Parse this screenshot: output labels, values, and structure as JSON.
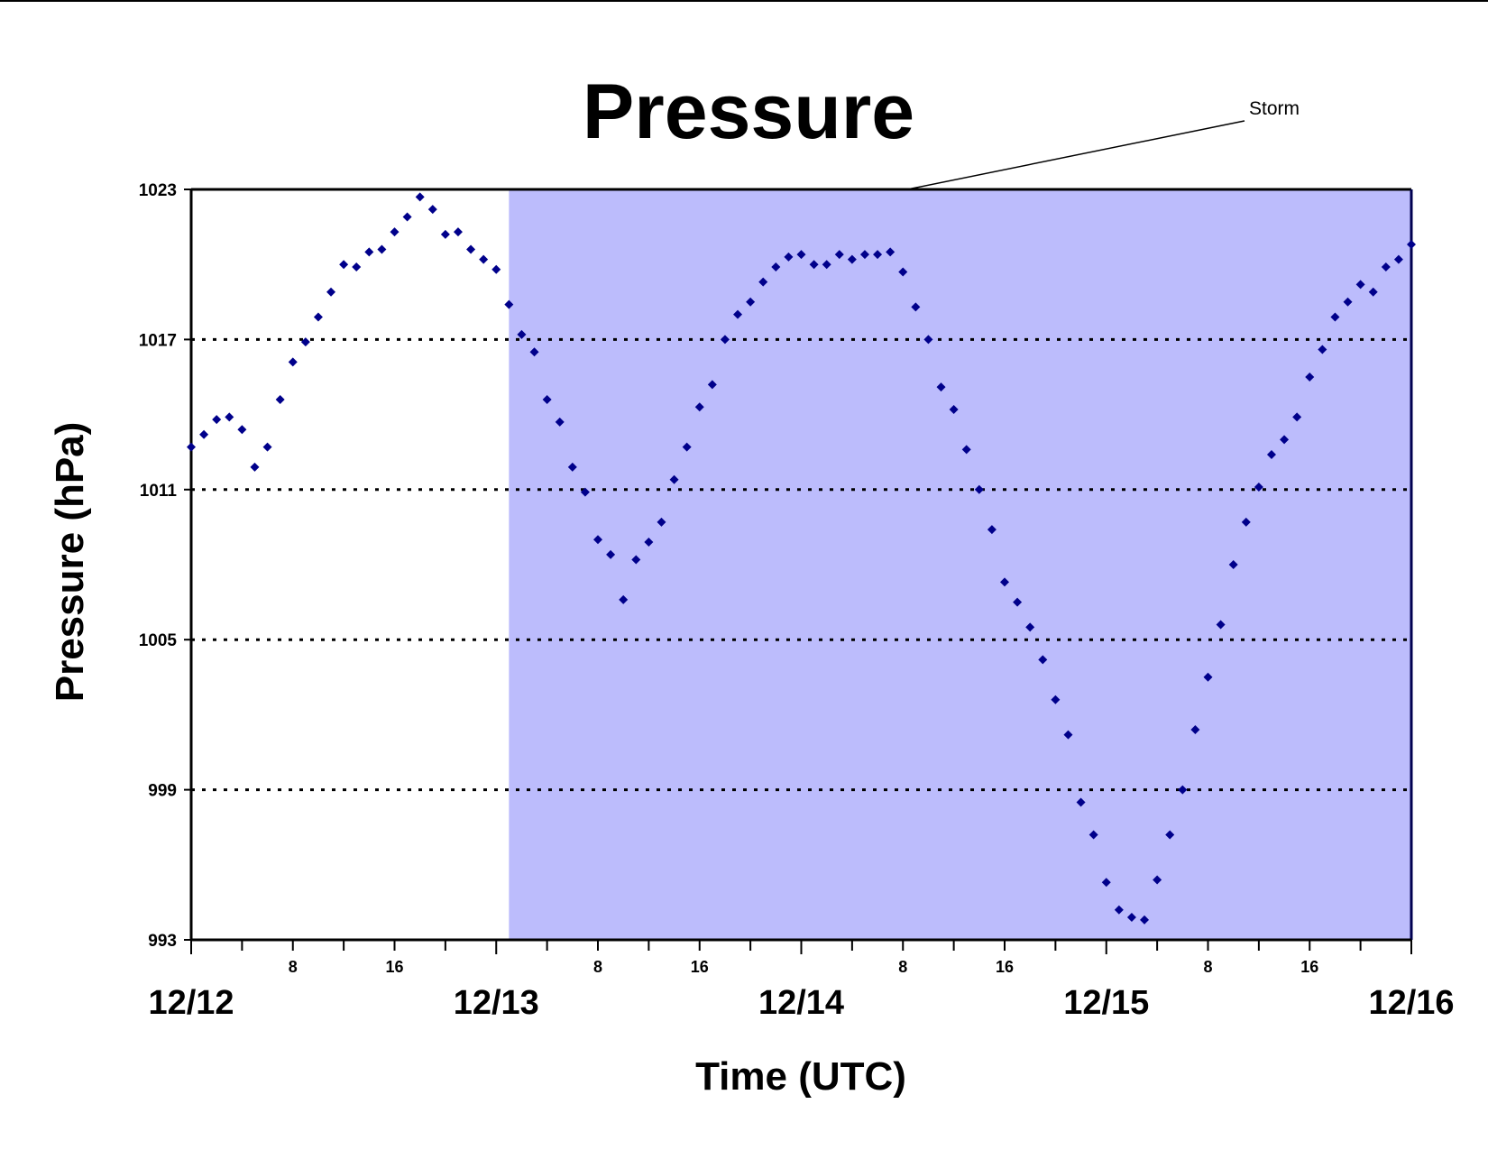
{
  "chart_data": {
    "type": "scatter",
    "title": "Pressure",
    "xlabel": "Time (UTC)",
    "ylabel": "Pressure (hPa)",
    "ylim": [
      993,
      1023
    ],
    "yticks": [
      "993",
      "999",
      "1005",
      "1011",
      "1017",
      "1023"
    ],
    "date_ticks": [
      {
        "label": "12/12",
        "hour": 0
      },
      {
        "label": "12/13",
        "hour": 24
      },
      {
        "label": "12/14",
        "hour": 48
      },
      {
        "label": "12/15",
        "hour": 72
      },
      {
        "label": "12/16",
        "hour": 96
      }
    ],
    "hour_ticks": [
      {
        "label": "8",
        "hour": 8
      },
      {
        "label": "16",
        "hour": 16
      },
      {
        "label": "8",
        "hour": 32
      },
      {
        "label": "16",
        "hour": 40
      },
      {
        "label": "8",
        "hour": 56
      },
      {
        "label": "16",
        "hour": 64
      },
      {
        "label": "8",
        "hour": 80
      },
      {
        "label": "16",
        "hour": 88
      }
    ],
    "xlim_hours": [
      0,
      96
    ],
    "grid": "horizontal dotted",
    "shaded_region": {
      "label": "Storm",
      "start_hour": 25,
      "end_hour": 96,
      "color": "#bcbcfc"
    },
    "marker_color": "#00008b",
    "series": [
      {
        "x_hours": [
          0,
          1,
          2,
          3,
          4,
          5,
          6,
          7,
          8,
          9,
          10,
          11,
          12,
          13,
          14,
          15,
          16,
          17,
          18,
          19,
          20,
          21,
          22,
          23,
          24,
          25,
          26,
          27,
          28,
          29,
          30,
          31,
          32,
          33,
          34,
          35,
          36,
          37,
          38,
          39,
          40,
          41,
          42,
          43,
          44,
          45,
          46,
          47,
          48,
          49,
          50,
          51,
          52,
          53,
          54,
          55,
          56,
          57,
          58,
          59,
          60,
          61,
          62,
          63,
          64,
          65,
          66,
          67,
          68,
          69,
          70,
          71,
          72,
          73,
          74,
          75,
          76,
          77,
          78,
          79,
          80,
          81,
          82,
          83,
          84,
          85,
          86,
          87,
          88,
          89,
          90,
          91,
          92,
          93,
          94,
          95,
          96
        ],
        "values": [
          1012.7,
          1013.2,
          1013.8,
          1013.9,
          1013.4,
          1011.9,
          1012.7,
          1014.6,
          1016.1,
          1016.9,
          1017.9,
          1018.9,
          1020.0,
          1019.9,
          1020.5,
          1020.6,
          1021.3,
          1021.9,
          1022.7,
          1022.2,
          1021.2,
          1021.3,
          1020.6,
          1020.2,
          1019.8,
          1018.4,
          1017.2,
          1016.5,
          1014.6,
          1013.7,
          1011.9,
          1010.9,
          1009.0,
          1008.4,
          1006.6,
          1008.2,
          1008.9,
          1009.7,
          1011.4,
          1012.7,
          1014.3,
          1015.2,
          1017.0,
          1018.0,
          1018.5,
          1019.3,
          1019.9,
          1020.3,
          1020.4,
          1020.0,
          1020.0,
          1020.4,
          1020.2,
          1020.4,
          1020.4,
          1020.5,
          1019.7,
          1018.3,
          1017.0,
          1015.1,
          1014.2,
          1012.6,
          1011.0,
          1009.4,
          1007.3,
          1006.5,
          1005.5,
          1004.2,
          1002.6,
          1001.2,
          998.5,
          997.2,
          995.3,
          994.2,
          993.9,
          993.8,
          995.4,
          997.2,
          999.0,
          1001.4,
          1003.5,
          1005.6,
          1008.0,
          1009.7,
          1011.1,
          1012.4,
          1013.0,
          1013.9,
          1015.5,
          1016.6,
          1017.9,
          1018.5,
          1019.2,
          1018.9,
          1019.9,
          1020.2,
          1020.8
        ]
      }
    ]
  }
}
